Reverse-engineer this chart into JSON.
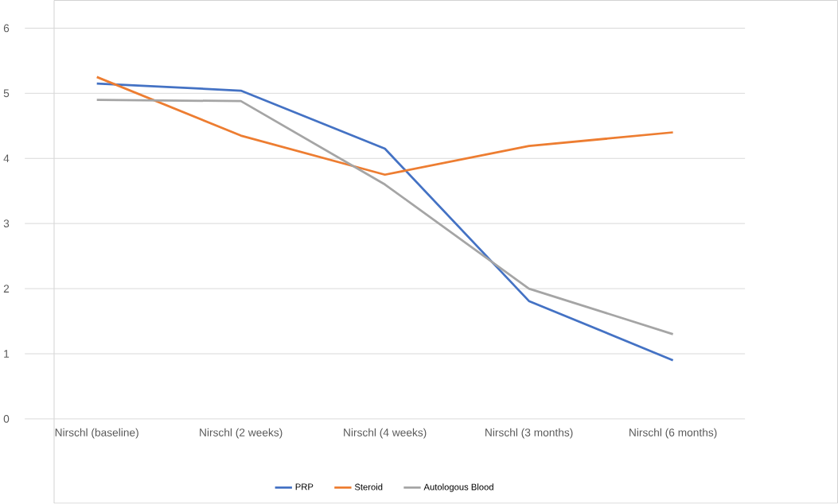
{
  "chart_data": {
    "type": "line",
    "categories": [
      "Nirschl (baseline)",
      "Nirschl  (2 weeks)",
      "Nirschl  (4 weeks)",
      "Nirschl  (3 months)",
      "Nirschl  (6 months)"
    ],
    "series": [
      {
        "name": "PRP",
        "color": "#4472c4",
        "values": [
          5.15,
          5.04,
          4.15,
          1.81,
          0.9
        ]
      },
      {
        "name": "Steroid",
        "color": "#ed7d31",
        "values": [
          5.25,
          4.35,
          3.75,
          4.19,
          4.4
        ]
      },
      {
        "name": "Autologous Blood",
        "color": "#a5a5a5",
        "values": [
          4.9,
          4.88,
          3.6,
          2.0,
          1.3
        ]
      }
    ],
    "ylim": [
      0,
      6
    ],
    "yticks": [
      0,
      1,
      2,
      3,
      4,
      5,
      6
    ],
    "grid": "y",
    "legend": "bottom",
    "marker": "none",
    "line_style": "solid"
  }
}
